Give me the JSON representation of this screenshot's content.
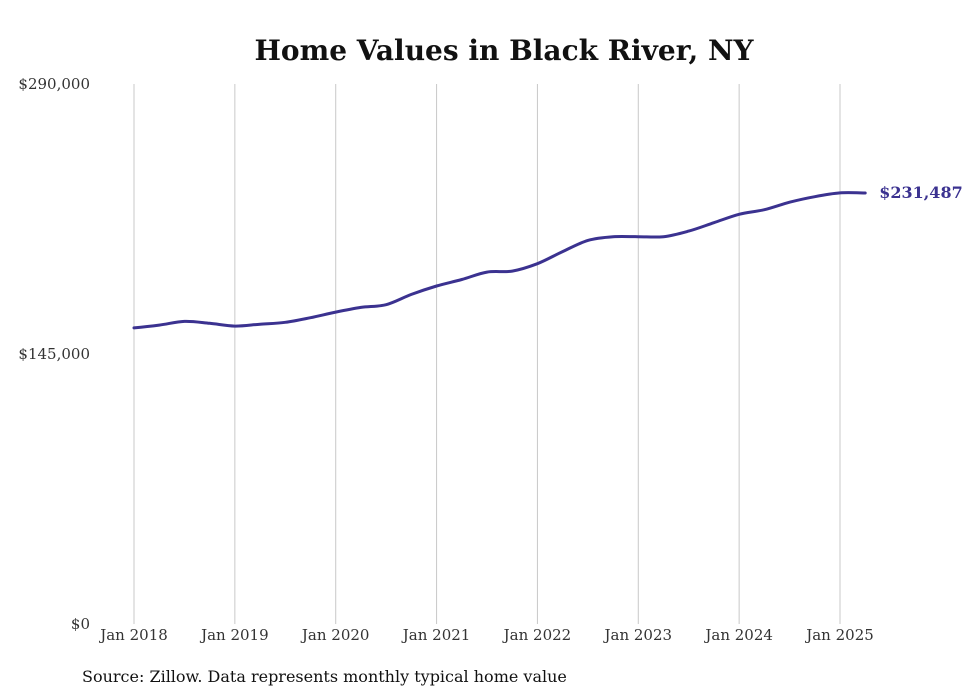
{
  "chart_data": {
    "type": "line",
    "title": "Home Values in Black River, NY",
    "xlabel": "",
    "ylabel": "",
    "ylim": [
      0,
      290000
    ],
    "yticks": [
      0,
      145000,
      290000
    ],
    "ytick_labels": [
      "$0",
      "$145,000",
      "$290,000"
    ],
    "xticks": [
      "2018-01",
      "2019-01",
      "2020-01",
      "2021-01",
      "2022-01",
      "2023-01",
      "2024-01",
      "2025-01"
    ],
    "xtick_labels": [
      "Jan 2018",
      "Jan 2019",
      "Jan 2020",
      "Jan 2021",
      "Jan 2022",
      "Jan 2023",
      "Jan 2024",
      "Jan 2025"
    ],
    "grid": "vertical",
    "line_color": "#3b3290",
    "end_label": "$231,487",
    "series": [
      {
        "x": [
          "2018-01",
          "2018-04",
          "2018-07",
          "2018-10",
          "2019-01",
          "2019-04",
          "2019-07",
          "2019-10",
          "2020-01",
          "2020-04",
          "2020-07",
          "2020-10",
          "2021-01",
          "2021-04",
          "2021-07",
          "2021-10",
          "2022-01",
          "2022-04",
          "2022-07",
          "2022-10",
          "2023-01",
          "2023-04",
          "2023-07",
          "2023-10",
          "2024-01",
          "2024-04",
          "2024-07",
          "2024-10",
          "2025-01",
          "2025-04"
        ],
        "values": [
          159000,
          160500,
          162500,
          161500,
          160000,
          161000,
          162000,
          164500,
          167500,
          170000,
          171500,
          177000,
          181500,
          185000,
          189000,
          189500,
          193500,
          200000,
          206000,
          208000,
          208000,
          208000,
          211000,
          215500,
          220000,
          222500,
          226500,
          229500,
          231500,
          231487
        ]
      }
    ]
  },
  "footer": {
    "source": "Source: Zillow. Data represents monthly typical home value"
  }
}
